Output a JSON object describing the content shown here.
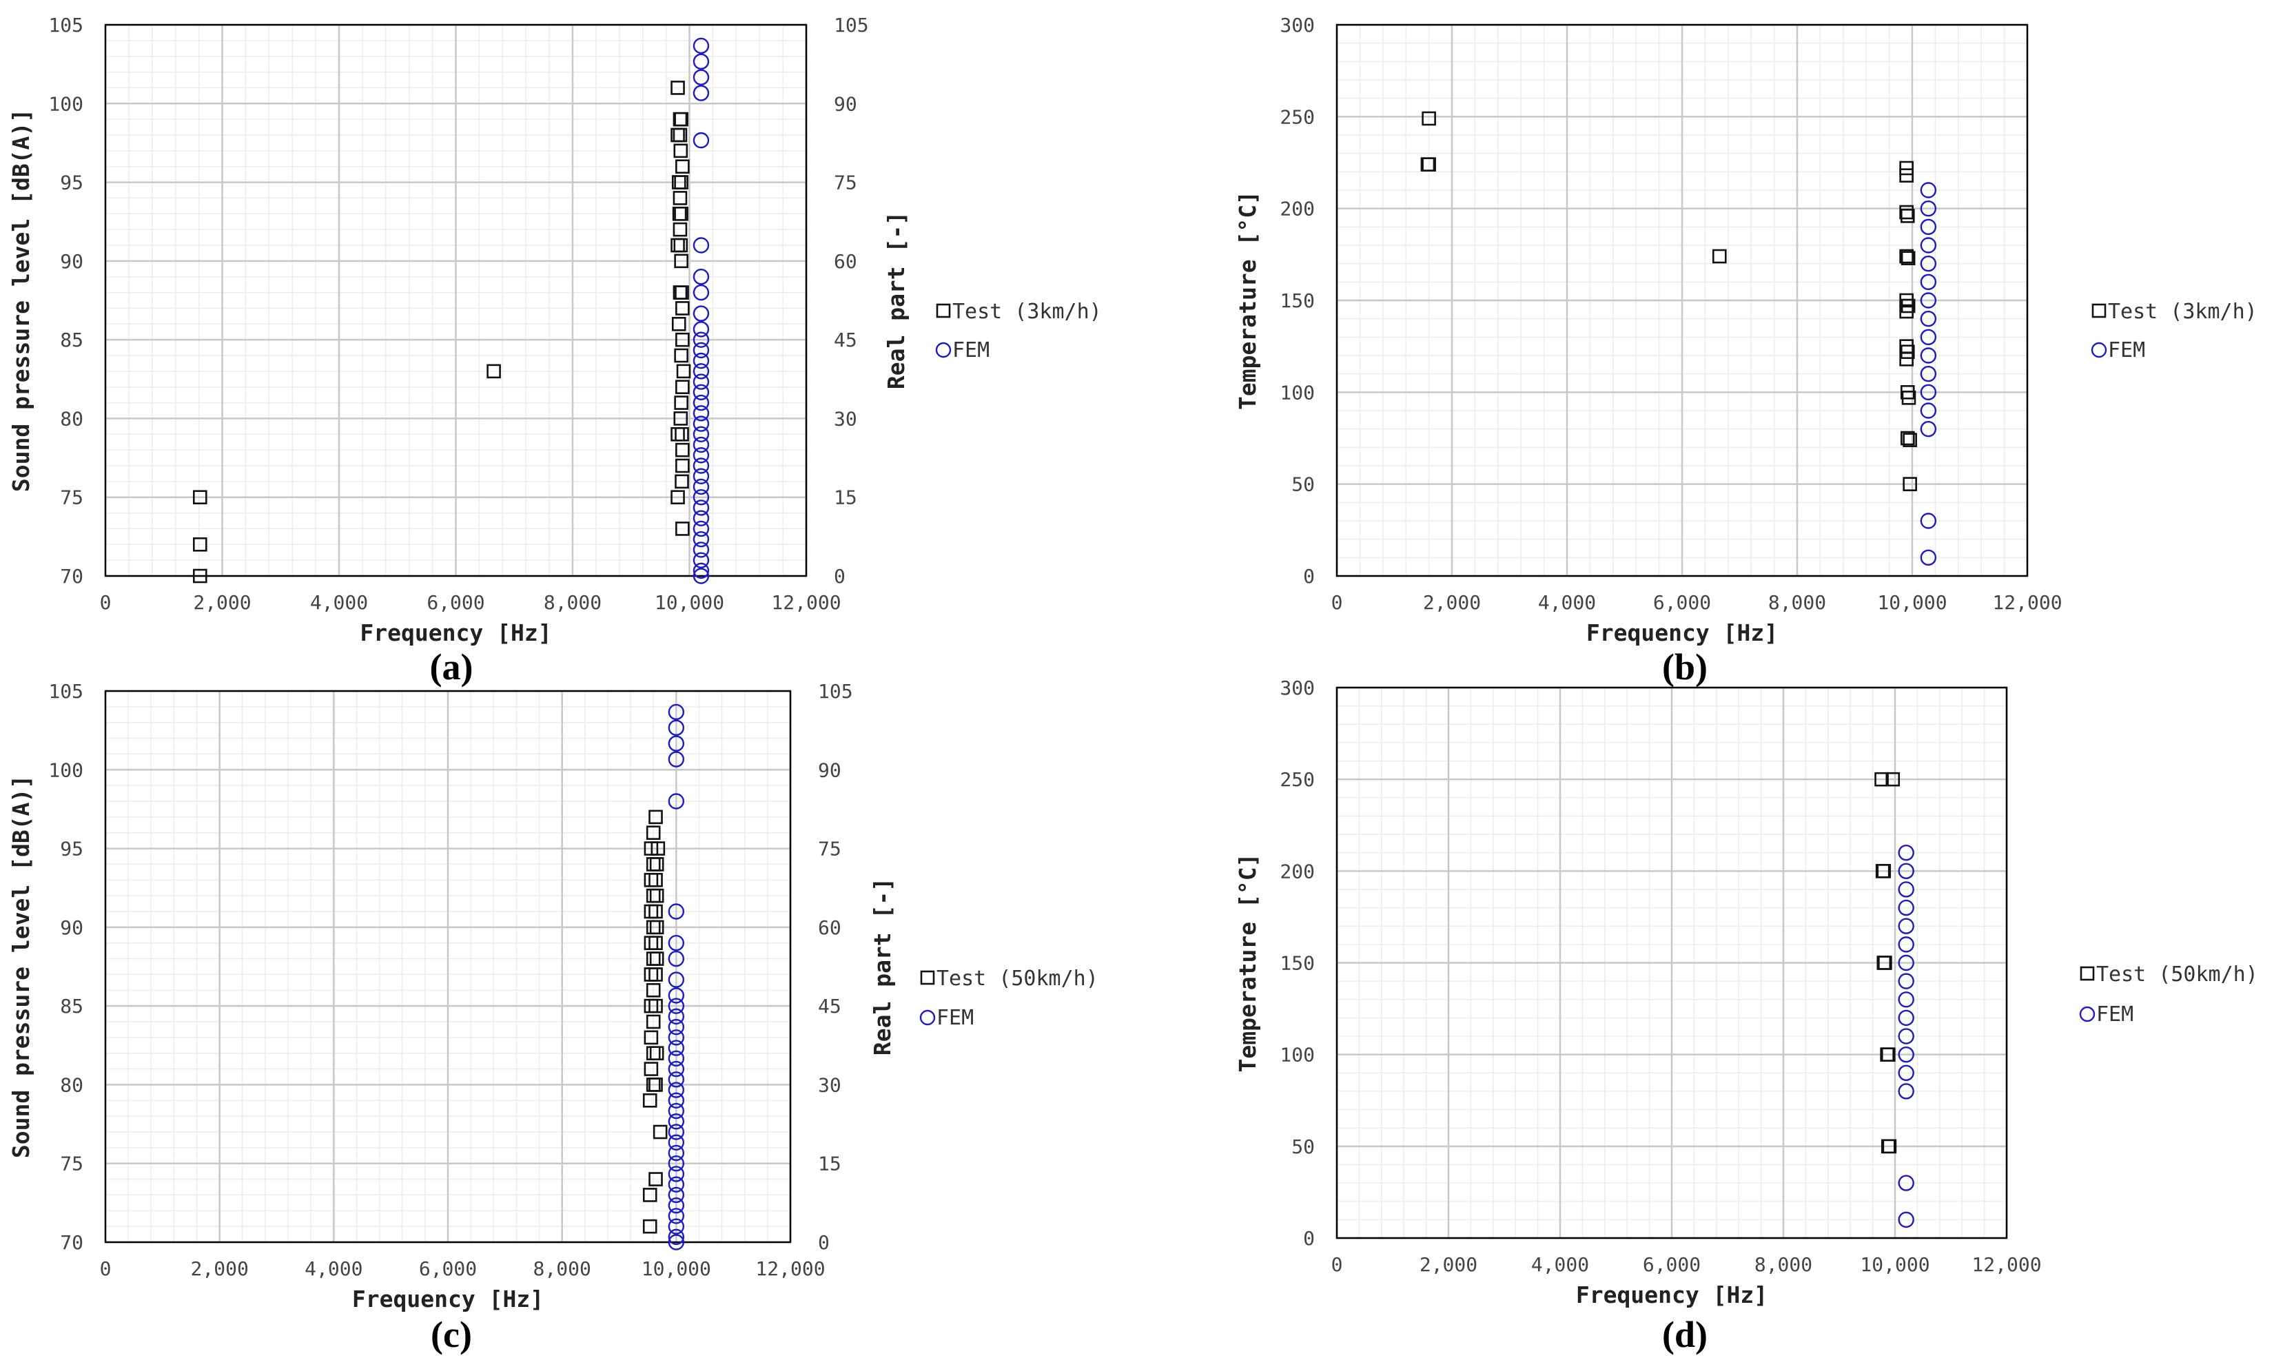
{
  "colors": {
    "test": "#111111",
    "fem": "#1a1acc",
    "grid_major": "#c8c8c8",
    "grid_minor": "#ececec"
  },
  "chart_data": [
    {
      "id": "a",
      "type": "scatter",
      "panel_label": "(a)",
      "xlabel": "Frequency [Hz]",
      "ylabel": "Sound pressure level [dB(A)]",
      "y2label": "Real part [-]",
      "xlim": [
        0,
        12000
      ],
      "ylim": [
        70,
        105
      ],
      "y2lim": [
        0,
        105
      ],
      "xticks": [
        0,
        2000,
        4000,
        6000,
        8000,
        10000,
        12000
      ],
      "xtick_labels": [
        "0",
        "2,000",
        "4,000",
        "6,000",
        "8,000",
        "10,000",
        "12,000"
      ],
      "yticks": [
        70,
        75,
        80,
        85,
        90,
        95,
        100,
        105
      ],
      "ytick_labels": [
        "70",
        "75",
        "80",
        "85",
        "90",
        "95",
        "100",
        "105"
      ],
      "y2ticks": [
        0,
        15,
        30,
        45,
        60,
        75,
        90,
        105
      ],
      "y2tick_labels": [
        "0",
        "15",
        "30",
        "45",
        "60",
        "75",
        "90",
        "105"
      ],
      "grid": true,
      "legend": {
        "placement": "right",
        "test": "Test (3km/h)",
        "fem": "FEM"
      },
      "series": [
        {
          "name": "Test (3km/h)",
          "axis": "left",
          "marker": "square",
          "points": [
            [
              1620,
              70
            ],
            [
              1620,
              72
            ],
            [
              1620,
              75
            ],
            [
              6650,
              83
            ],
            [
              9800,
              101
            ],
            [
              9840,
              99
            ],
            [
              9860,
              99
            ],
            [
              9800,
              98
            ],
            [
              9840,
              98
            ],
            [
              9850,
              97
            ],
            [
              9880,
              96
            ],
            [
              9820,
              95
            ],
            [
              9860,
              95
            ],
            [
              9840,
              94
            ],
            [
              9830,
              93
            ],
            [
              9860,
              93
            ],
            [
              9840,
              92
            ],
            [
              9800,
              91
            ],
            [
              9850,
              91
            ],
            [
              9860,
              90
            ],
            [
              9840,
              88
            ],
            [
              9870,
              88
            ],
            [
              9880,
              87
            ],
            [
              9820,
              86
            ],
            [
              9880,
              85
            ],
            [
              9860,
              84
            ],
            [
              9900,
              83
            ],
            [
              9880,
              82
            ],
            [
              9860,
              81
            ],
            [
              9850,
              80
            ],
            [
              9800,
              79
            ],
            [
              9870,
              79
            ],
            [
              9880,
              78
            ],
            [
              9880,
              77
            ],
            [
              9870,
              76
            ],
            [
              9800,
              75
            ],
            [
              9880,
              73
            ]
          ]
        },
        {
          "name": "FEM",
          "axis": "right",
          "marker": "circle",
          "points": [
            [
              10200,
              101
            ],
            [
              10200,
              98
            ],
            [
              10200,
              95
            ],
            [
              10200,
              92
            ],
            [
              10200,
              83
            ],
            [
              10200,
              63
            ],
            [
              10200,
              57
            ],
            [
              10200,
              54
            ],
            [
              10200,
              50
            ],
            [
              10200,
              47
            ],
            [
              10200,
              45
            ],
            [
              10200,
              43
            ],
            [
              10200,
              41
            ],
            [
              10200,
              39
            ],
            [
              10200,
              37
            ],
            [
              10200,
              35
            ],
            [
              10200,
              33
            ],
            [
              10200,
              31
            ],
            [
              10200,
              29
            ],
            [
              10200,
              27
            ],
            [
              10200,
              25
            ],
            [
              10200,
              23
            ],
            [
              10200,
              21
            ],
            [
              10200,
              19
            ],
            [
              10200,
              17
            ],
            [
              10200,
              15
            ],
            [
              10200,
              13
            ],
            [
              10200,
              11
            ],
            [
              10200,
              9
            ],
            [
              10200,
              7
            ],
            [
              10200,
              5
            ],
            [
              10200,
              3
            ],
            [
              10200,
              1
            ],
            [
              10200,
              0
            ]
          ]
        }
      ]
    },
    {
      "id": "b",
      "type": "scatter",
      "panel_label": "(b)",
      "xlabel": "Frequency [Hz]",
      "ylabel": "Temperature [°C]",
      "xlim": [
        0,
        12000
      ],
      "ylim": [
        0,
        300
      ],
      "xticks": [
        0,
        2000,
        4000,
        6000,
        8000,
        10000,
        12000
      ],
      "xtick_labels": [
        "0",
        "2,000",
        "4,000",
        "6,000",
        "8,000",
        "10,000",
        "12,000"
      ],
      "yticks": [
        0,
        50,
        100,
        150,
        200,
        250,
        300
      ],
      "ytick_labels": [
        "0",
        "50",
        "100",
        "150",
        "200",
        "250",
        "300"
      ],
      "grid": true,
      "legend": {
        "placement": "right",
        "test": "Test (3km/h)",
        "fem": "FEM"
      },
      "series": [
        {
          "name": "Test (3km/h)",
          "axis": "left",
          "marker": "square",
          "points": [
            [
              1600,
              249
            ],
            [
              1600,
              224
            ],
            [
              1580,
              224
            ],
            [
              6650,
              174
            ],
            [
              9900,
              222
            ],
            [
              9900,
              218
            ],
            [
              9900,
              198
            ],
            [
              9920,
              196
            ],
            [
              9900,
              174
            ],
            [
              9930,
              173
            ],
            [
              9900,
              150
            ],
            [
              9930,
              147
            ],
            [
              9900,
              144
            ],
            [
              9900,
              125
            ],
            [
              9920,
              122
            ],
            [
              9900,
              118
            ],
            [
              9920,
              100
            ],
            [
              9940,
              97
            ],
            [
              9920,
              75
            ],
            [
              9960,
              74
            ],
            [
              9960,
              50
            ]
          ]
        },
        {
          "name": "FEM",
          "axis": "left",
          "marker": "circle",
          "points": [
            [
              10280,
              210
            ],
            [
              10280,
              200
            ],
            [
              10280,
              190
            ],
            [
              10280,
              180
            ],
            [
              10280,
              170
            ],
            [
              10280,
              160
            ],
            [
              10280,
              150
            ],
            [
              10280,
              140
            ],
            [
              10280,
              130
            ],
            [
              10280,
              120
            ],
            [
              10280,
              110
            ],
            [
              10280,
              100
            ],
            [
              10280,
              90
            ],
            [
              10280,
              80
            ],
            [
              10280,
              30
            ],
            [
              10280,
              10
            ]
          ]
        }
      ]
    },
    {
      "id": "c",
      "type": "scatter",
      "panel_label": "(c)",
      "xlabel": "Frequency [Hz]",
      "ylabel": "Sound pressure level [dB(A)]",
      "y2label": "Real part [-]",
      "xlim": [
        0,
        12000
      ],
      "ylim": [
        70,
        105
      ],
      "y2lim": [
        0,
        105
      ],
      "xticks": [
        0,
        2000,
        4000,
        6000,
        8000,
        10000,
        12000
      ],
      "xtick_labels": [
        "0",
        "2,000",
        "4,000",
        "6,000",
        "8,000",
        "10,000",
        "12,000"
      ],
      "yticks": [
        70,
        75,
        80,
        85,
        90,
        95,
        100,
        105
      ],
      "ytick_labels": [
        "70",
        "75",
        "80",
        "85",
        "90",
        "95",
        "100",
        "105"
      ],
      "y2ticks": [
        0,
        15,
        30,
        45,
        60,
        75,
        90,
        105
      ],
      "y2tick_labels": [
        "0",
        "15",
        "30",
        "45",
        "60",
        "75",
        "90",
        "105"
      ],
      "grid": true,
      "legend": {
        "placement": "right",
        "test": "Test (50km/h)",
        "fem": "FEM"
      },
      "series": [
        {
          "name": "Test (50km/h)",
          "axis": "left",
          "marker": "square",
          "points": [
            [
              9640,
              97
            ],
            [
              9600,
              96
            ],
            [
              9560,
              95
            ],
            [
              9680,
              95
            ],
            [
              9600,
              94
            ],
            [
              9660,
              94
            ],
            [
              9560,
              93
            ],
            [
              9640,
              93
            ],
            [
              9600,
              92
            ],
            [
              9660,
              92
            ],
            [
              9560,
              91
            ],
            [
              9640,
              91
            ],
            [
              9600,
              90
            ],
            [
              9660,
              90
            ],
            [
              9560,
              89
            ],
            [
              9640,
              89
            ],
            [
              9600,
              88
            ],
            [
              9660,
              88
            ],
            [
              9560,
              87
            ],
            [
              9640,
              87
            ],
            [
              9600,
              86
            ],
            [
              9560,
              85
            ],
            [
              9640,
              85
            ],
            [
              9600,
              84
            ],
            [
              9560,
              83
            ],
            [
              9600,
              82
            ],
            [
              9660,
              82
            ],
            [
              9560,
              81
            ],
            [
              9640,
              80
            ],
            [
              9600,
              80
            ],
            [
              9540,
              79
            ],
            [
              9720,
              77
            ],
            [
              9640,
              74
            ],
            [
              9540,
              73
            ],
            [
              9540,
              71
            ]
          ]
        },
        {
          "name": "FEM",
          "axis": "right",
          "marker": "circle",
          "points": [
            [
              10000,
              101
            ],
            [
              10000,
              98
            ],
            [
              10000,
              95
            ],
            [
              10000,
              92
            ],
            [
              10000,
              84
            ],
            [
              10000,
              63
            ],
            [
              10000,
              57
            ],
            [
              10000,
              54
            ],
            [
              10000,
              50
            ],
            [
              10000,
              47
            ],
            [
              10000,
              45
            ],
            [
              10000,
              43
            ],
            [
              10000,
              41
            ],
            [
              10000,
              39
            ],
            [
              10000,
              37
            ],
            [
              10000,
              35
            ],
            [
              10000,
              33
            ],
            [
              10000,
              31
            ],
            [
              10000,
              29
            ],
            [
              10000,
              27
            ],
            [
              10000,
              25
            ],
            [
              10000,
              23
            ],
            [
              10000,
              21
            ],
            [
              10000,
              19
            ],
            [
              10000,
              17
            ],
            [
              10000,
              15
            ],
            [
              10000,
              13
            ],
            [
              10000,
              11
            ],
            [
              10000,
              9
            ],
            [
              10000,
              7
            ],
            [
              10000,
              5
            ],
            [
              10000,
              3
            ],
            [
              10000,
              1
            ],
            [
              10000,
              0
            ]
          ]
        }
      ]
    },
    {
      "id": "d",
      "type": "scatter",
      "panel_label": "(d)",
      "xlabel": "Frequency [Hz]",
      "ylabel": "Temperature [°C]",
      "xlim": [
        0,
        12000
      ],
      "ylim": [
        0,
        300
      ],
      "xticks": [
        0,
        2000,
        4000,
        6000,
        8000,
        10000,
        12000
      ],
      "xtick_labels": [
        "0",
        "2,000",
        "4,000",
        "6,000",
        "8,000",
        "10,000",
        "12,000"
      ],
      "yticks": [
        0,
        50,
        100,
        150,
        200,
        250,
        300
      ],
      "ytick_labels": [
        "0",
        "50",
        "100",
        "150",
        "200",
        "250",
        "300"
      ],
      "grid": true,
      "legend": {
        "placement": "right",
        "test": "Test (50km/h)",
        "fem": "FEM"
      },
      "series": [
        {
          "name": "Test (50km/h)",
          "axis": "left",
          "marker": "square",
          "points": [
            [
              9760,
              250
            ],
            [
              9960,
              250
            ],
            [
              9780,
              200
            ],
            [
              9800,
              200
            ],
            [
              9800,
              150
            ],
            [
              9820,
              150
            ],
            [
              9860,
              100
            ],
            [
              9880,
              100
            ],
            [
              9880,
              50
            ],
            [
              9900,
              50
            ]
          ]
        },
        {
          "name": "FEM",
          "axis": "left",
          "marker": "circle",
          "points": [
            [
              10200,
              210
            ],
            [
              10200,
              200
            ],
            [
              10200,
              190
            ],
            [
              10200,
              180
            ],
            [
              10200,
              170
            ],
            [
              10200,
              160
            ],
            [
              10200,
              150
            ],
            [
              10200,
              140
            ],
            [
              10200,
              130
            ],
            [
              10200,
              120
            ],
            [
              10200,
              110
            ],
            [
              10200,
              100
            ],
            [
              10200,
              90
            ],
            [
              10200,
              80
            ],
            [
              10200,
              30
            ],
            [
              10200,
              10
            ]
          ]
        }
      ]
    }
  ]
}
